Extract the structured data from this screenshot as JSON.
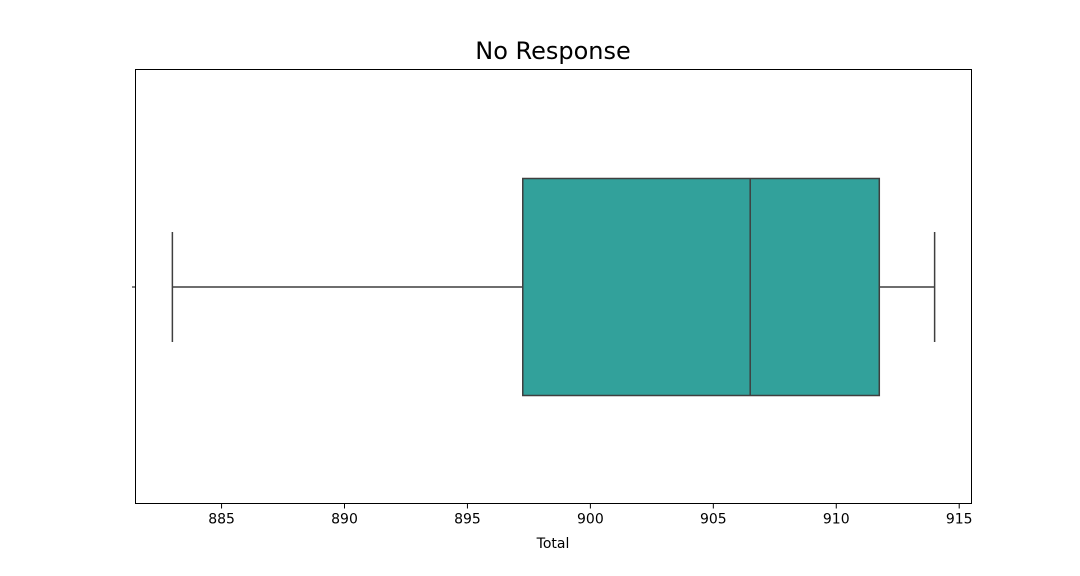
{
  "chart_data": {
    "type": "box",
    "title": "No Response",
    "xlabel": "Total",
    "ylabel": "",
    "orientation": "horizontal",
    "xlim": [
      881.5,
      915.5
    ],
    "xticks": [
      885,
      890,
      895,
      900,
      905,
      910,
      915
    ],
    "grid": false,
    "legend": "none",
    "box": {
      "whisker_low": 883,
      "q1": 897.25,
      "median": 906.5,
      "q3": 911.75,
      "whisker_high": 914
    },
    "colors": {
      "box_fill": "#32a19b",
      "box_edge": "#3f3f3f",
      "axes": "#000000"
    }
  }
}
